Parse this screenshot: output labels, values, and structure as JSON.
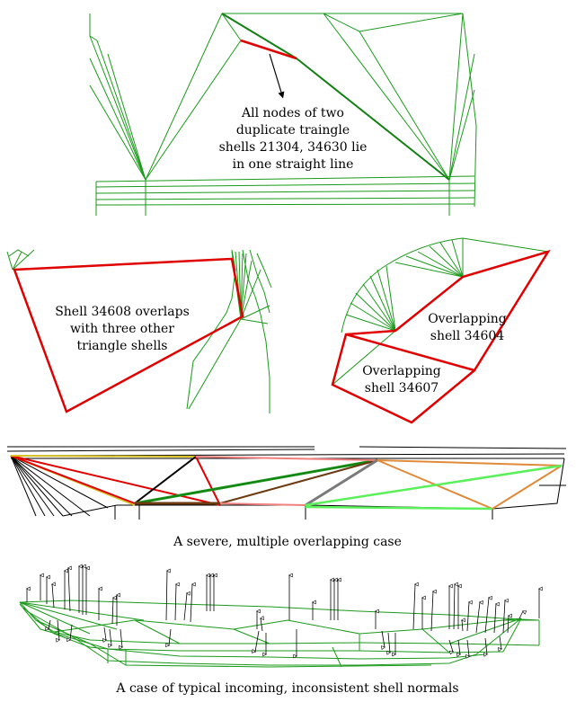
{
  "colors": {
    "mesh": "#1a9a1a",
    "highlight": "#e00000",
    "light_green": "#5af05a",
    "orange": "#e08a3a",
    "brown": "#6b3a10",
    "gray": "#7a7a7a",
    "black": "#000000",
    "yellow": "#d8c020",
    "pink": "#f08080"
  },
  "panel1": {
    "annotation": [
      "All nodes of two",
      "duplicate traingle",
      "shells 21304, 34630 lie",
      "in one straight line"
    ]
  },
  "panel2": {
    "annotation": [
      "Shell 34608 overlaps",
      "with three other",
      "triangle shells"
    ]
  },
  "panel3": {
    "label_a": [
      "Overlapping",
      "shell 34604"
    ],
    "label_b": [
      "Overlapping",
      "shell 34607"
    ]
  },
  "captions": {
    "severe": "A severe, multiple overlapping case",
    "normals": "A case of typical incoming, inconsistent shell normals"
  }
}
